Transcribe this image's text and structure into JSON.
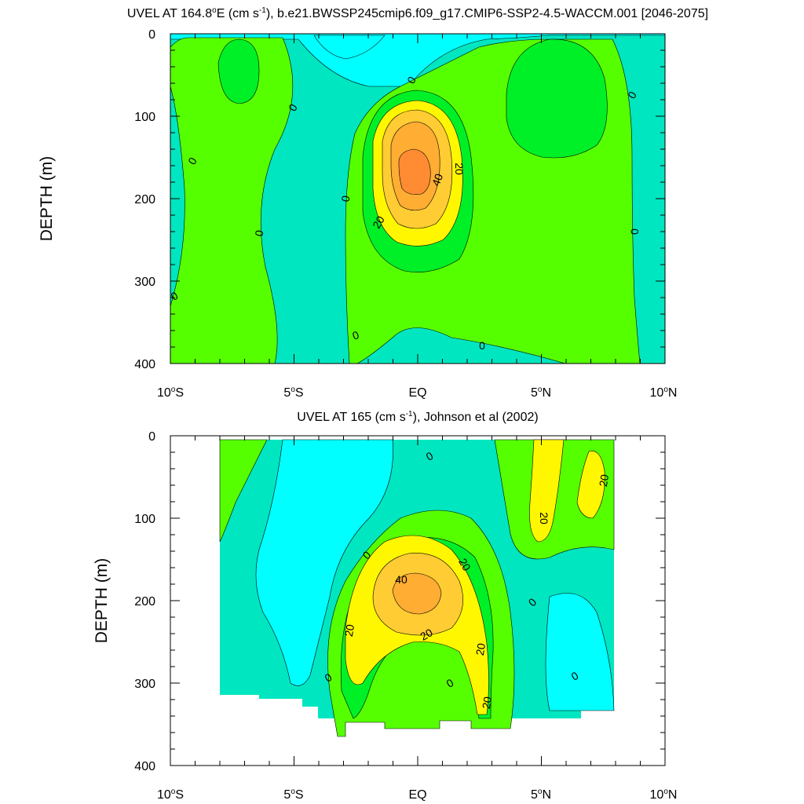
{
  "palette": {
    "neg10": "#00ffff",
    "neg0": "#00e6c0",
    "p0": "#56ff00",
    "p10": "#00f028",
    "p20": "#fff700",
    "p30": "#ffcc33",
    "p40": "#ffad33",
    "p50": "#ff8c33"
  },
  "chart_data": [
    {
      "type": "contour",
      "title_main": "UVEL AT 164.8",
      "title_deg": "o",
      "title_unit_a": "E (cm s",
      "title_sup": "-1",
      "title_rest": "), b.e21.BWSSP245cmip6.f09_g17.CMIP6-SSP2-4.5-WACCM.001 [2046-2075]",
      "ylabel": "DEPTH (m)",
      "x_range": [
        -10,
        10
      ],
      "y_range": [
        0,
        400
      ],
      "x_ticks": [
        {
          "value": -10,
          "num": "10",
          "deg": "o",
          "hemi": "S"
        },
        {
          "value": -5,
          "num": "5",
          "deg": "o",
          "hemi": "S"
        },
        {
          "value": 0,
          "num": "EQ",
          "deg": "",
          "hemi": ""
        },
        {
          "value": 5,
          "num": "5",
          "deg": "o",
          "hemi": "N"
        },
        {
          "value": 10,
          "num": "10",
          "deg": "o",
          "hemi": "N"
        }
      ],
      "y_ticks": [
        "0",
        "100",
        "200",
        "300",
        "400"
      ],
      "contour_interval": 10,
      "contour_labels": [
        "0",
        "0",
        "0",
        "0",
        "0",
        "0",
        "0",
        "0",
        "0",
        "0",
        "20",
        "40",
        "20"
      ],
      "core_max_approx": 50,
      "core_depth_approx": 165,
      "core_lat_approx": 0
    },
    {
      "type": "contour",
      "title_main": "UVEL AT 165 (cm s",
      "title_sup": "-1",
      "title_rest": "), Johnson et al (2002)",
      "ylabel": "DEPTH (m)",
      "x_range": [
        -10,
        10
      ],
      "y_range": [
        0,
        400
      ],
      "x_ticks": [
        {
          "value": -10,
          "num": "10",
          "deg": "o",
          "hemi": "S"
        },
        {
          "value": -5,
          "num": "5",
          "deg": "o",
          "hemi": "S"
        },
        {
          "value": 0,
          "num": "EQ",
          "deg": "",
          "hemi": ""
        },
        {
          "value": 5,
          "num": "5",
          "deg": "o",
          "hemi": "N"
        },
        {
          "value": 10,
          "num": "10",
          "deg": "o",
          "hemi": "N"
        }
      ],
      "y_ticks": [
        "0",
        "100",
        "200",
        "300",
        "400"
      ],
      "contour_interval": 10,
      "contour_labels": [
        "0",
        "0",
        "0",
        "0",
        "0",
        "0",
        "40",
        "20",
        "20",
        "20",
        "20",
        "20",
        "20",
        "20"
      ],
      "core_max_approx": 40,
      "core_depth_approx": 185,
      "core_lat_approx": 0
    }
  ]
}
